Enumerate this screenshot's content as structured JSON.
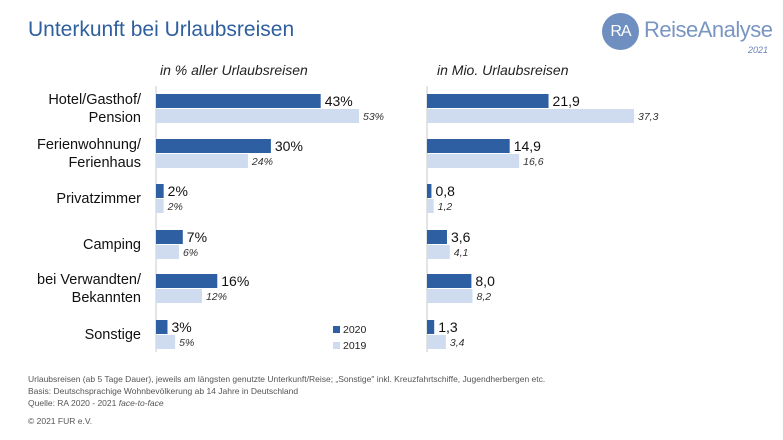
{
  "title": "Unterkunft bei Urlaubsreisen",
  "logo": {
    "mark": "RA",
    "name": "ReiseAnalyse",
    "year": "2021"
  },
  "colors": {
    "y2020": "#2f5fa3",
    "y2019": "#cfdcef",
    "title": "#2f5f9f"
  },
  "chart_data": [
    {
      "type": "bar",
      "orientation": "horizontal",
      "title": "in % aller Urlaubsreisen",
      "categories": [
        "Hotel/Gasthof/\nPension",
        "Ferienwohnung/\nFerienhaus",
        "Privatzimmer",
        "Camping",
        "bei Verwandten/\nBekannten",
        "Sonstige"
      ],
      "series": [
        {
          "name": "2020",
          "values": [
            43,
            30,
            2,
            7,
            16,
            3
          ],
          "labels": [
            "43%",
            "30%",
            "2%",
            "7%",
            "16%",
            "3%"
          ]
        },
        {
          "name": "2019",
          "values": [
            53,
            24,
            2,
            6,
            12,
            5
          ],
          "labels": [
            "53%",
            "24%",
            "2%",
            "6%",
            "12%",
            "5%"
          ]
        }
      ],
      "legend": "bottom-right"
    },
    {
      "type": "bar",
      "orientation": "horizontal",
      "title": "in Mio. Urlaubsreisen",
      "categories": [
        "Hotel/Gasthof/\nPension",
        "Ferienwohnung/\nFerienhaus",
        "Privatzimmer",
        "Camping",
        "bei Verwandten/\nBekannten",
        "Sonstige"
      ],
      "series": [
        {
          "name": "2020",
          "values": [
            21.9,
            14.9,
            0.8,
            3.6,
            8.0,
            1.3
          ],
          "labels": [
            "21,9",
            "14,9",
            "0,8",
            "3,6",
            "8,0",
            "1,3"
          ]
        },
        {
          "name": "2019",
          "values": [
            37.3,
            16.6,
            1.2,
            4.1,
            8.2,
            3.4
          ],
          "labels": [
            "37,3",
            "16,6",
            "1,2",
            "4,1",
            "8,2",
            "3,4"
          ]
        }
      ]
    }
  ],
  "footnotes": [
    "Urlaubsreisen (ab 5 Tage Dauer), jeweils am längsten genutzte Unterkunft/Reise; „Sonstige\" inkl. Kreuzfahrtschiffe, Jugendherbergen etc.",
    "Basis: Deutschsprachige Wohnbevölkerung ab 14 Jahre in Deutschland",
    "Quelle: RA 2020 - 2021 face-to-face"
  ],
  "copyright": "© 2021 FUR e.V."
}
